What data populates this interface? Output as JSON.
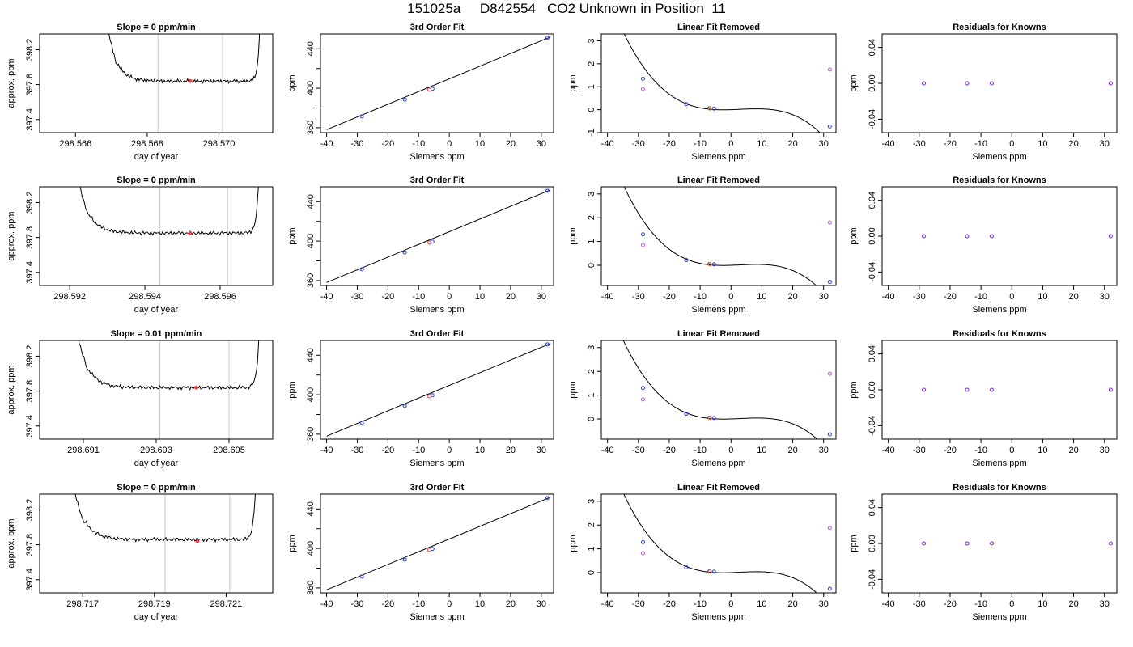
{
  "page": {
    "title": "151025a     D842554   CO2 Unknown in Position  11"
  },
  "chart_data": [
    {
      "type": "line",
      "panel": "time-trace",
      "title": "Slope =  0  ppm/min",
      "xlabel": "day of year",
      "ylabel": "approx. ppm",
      "xlim": [
        298.565,
        298.5715
      ],
      "ylim": [
        397.25,
        398.38
      ],
      "x_ticks": [
        298.566,
        298.568,
        298.57
      ],
      "x_tick_labels": [
        "298.566",
        "298.568",
        "298.570"
      ],
      "y_ticks": [
        397.4,
        397.8,
        398.2
      ],
      "y_tick_labels": [
        "397.4",
        "397.8",
        "398.2"
      ],
      "trace_start": 298.5667,
      "trace_end": 298.5712,
      "baseline": 397.84,
      "marker_lines": [
        298.5683,
        298.5701
      ],
      "marker_point": {
        "x": 298.5692,
        "y": 397.84
      }
    },
    {
      "type": "scatter",
      "panel": "fit",
      "title": "3rd Order Fit",
      "xlabel": "Siemens ppm",
      "ylabel": "ppm",
      "xlim": [
        -42,
        34
      ],
      "ylim": [
        355,
        455
      ],
      "x_ticks": [
        -40,
        -30,
        -20,
        -10,
        0,
        10,
        20,
        30
      ],
      "x_tick_labels": [
        "-40",
        "-30",
        "-20",
        "-10",
        "0",
        "10",
        "20",
        "30"
      ],
      "y_ticks": [
        360,
        380,
        400,
        420,
        440
      ],
      "y_tick_labels": [
        "360",
        "",
        "400",
        "",
        "440"
      ],
      "line": {
        "x": [
          -40,
          33
        ],
        "y": [
          358,
          452
        ]
      },
      "known_points": [
        {
          "x": -28.5,
          "y": 371.5
        },
        {
          "x": -14.5,
          "y": 388.5
        },
        {
          "x": -5.5,
          "y": 399.5
        },
        {
          "x": 32,
          "y": 451
        }
      ],
      "unknown_points": [
        {
          "x": -6.5,
          "y": 398.5
        }
      ]
    },
    {
      "type": "scatter",
      "panel": "residual-curve",
      "title": "Linear Fit Removed",
      "xlabel": "Siemens ppm",
      "ylabel": "ppm",
      "xlim": [
        -42,
        34
      ],
      "ylim": [
        -1,
        3.3
      ],
      "x_ticks": [
        -40,
        -30,
        -20,
        -10,
        0,
        10,
        20,
        30
      ],
      "x_tick_labels": [
        "-40",
        "-30",
        "-20",
        "-10",
        "0",
        "10",
        "20",
        "30"
      ],
      "y_ticks": [
        -1,
        0,
        1,
        2,
        3
      ],
      "y_tick_labels": [
        "-1",
        "0",
        "1",
        "2",
        "3"
      ],
      "curve_range": [
        -40,
        32
      ],
      "curve_a": -6.7e-05,
      "curve_b": 0.00057,
      "curve_c": 0.0044,
      "known_points": [
        {
          "x": -28.5,
          "y": 1.35
        },
        {
          "x": -14.5,
          "y": 0.24
        },
        {
          "x": -7,
          "y": 0.06
        },
        {
          "x": -5.5,
          "y": 0.05
        },
        {
          "x": 32,
          "y": -0.73
        }
      ],
      "unknown_points": [
        {
          "x": -6.8,
          "y": 0.05
        }
      ],
      "open_points": [
        {
          "x": -28.5,
          "y": 0.9
        },
        {
          "x": 32,
          "y": 1.75
        }
      ]
    },
    {
      "type": "scatter",
      "panel": "knowns-residuals",
      "title": "Residuals for Knowns",
      "xlabel": "Siemens ppm",
      "ylabel": "ppm",
      "xlim": [
        -42,
        34
      ],
      "ylim": [
        -0.055,
        0.055
      ],
      "x_ticks": [
        -40,
        -30,
        -20,
        -10,
        0,
        10,
        20,
        30
      ],
      "x_tick_labels": [
        "-40",
        "-30",
        "-20",
        "-10",
        "0",
        "10",
        "20",
        "30"
      ],
      "y_ticks": [
        -0.04,
        0,
        0.04
      ],
      "y_tick_labels": [
        "-0.04",
        "0.00",
        "0.04"
      ],
      "points": [
        {
          "x": -28.5,
          "y": 0
        },
        {
          "x": -14.5,
          "y": 0
        },
        {
          "x": -6.5,
          "y": 0
        },
        {
          "x": 32,
          "y": 0
        }
      ]
    },
    {
      "type": "line",
      "panel": "time-trace",
      "title": "Slope =  0  ppm/min",
      "xlabel": "day of year",
      "ylabel": "approx. ppm",
      "xlim": [
        298.5912,
        298.5974
      ],
      "ylim": [
        397.25,
        398.38
      ],
      "x_ticks": [
        298.592,
        298.594,
        298.596
      ],
      "x_tick_labels": [
        "298.592",
        "298.594",
        "298.596"
      ],
      "y_ticks": [
        397.4,
        397.8,
        398.2
      ],
      "y_tick_labels": [
        "397.4",
        "397.8",
        "398.2"
      ],
      "trace_start": 298.592,
      "trace_end": 298.5971,
      "baseline": 397.85,
      "marker_lines": [
        298.5944,
        298.5962
      ],
      "marker_point": {
        "x": 298.5952,
        "y": 397.85
      }
    },
    {
      "type": "scatter",
      "panel": "fit",
      "title": "3rd Order Fit",
      "xlabel": "Siemens ppm",
      "ylabel": "ppm",
      "xlim": [
        -42,
        34
      ],
      "ylim": [
        355,
        455
      ],
      "x_ticks": [
        -40,
        -30,
        -20,
        -10,
        0,
        10,
        20,
        30
      ],
      "x_tick_labels": [
        "-40",
        "-30",
        "-20",
        "-10",
        "0",
        "10",
        "20",
        "30"
      ],
      "y_ticks": [
        360,
        380,
        400,
        420,
        440
      ],
      "y_tick_labels": [
        "360",
        "",
        "400",
        "",
        "440"
      ],
      "line": {
        "x": [
          -40,
          33
        ],
        "y": [
          358,
          452
        ]
      },
      "known_points": [
        {
          "x": -28.5,
          "y": 371.5
        },
        {
          "x": -14.5,
          "y": 388.5
        },
        {
          "x": -5.5,
          "y": 399.5
        },
        {
          "x": 32,
          "y": 451
        }
      ],
      "unknown_points": [
        {
          "x": -6.5,
          "y": 398.5
        }
      ]
    },
    {
      "type": "scatter",
      "panel": "residual-curve",
      "title": "Linear Fit Removed",
      "xlabel": "Siemens ppm",
      "ylabel": "ppm",
      "xlim": [
        -42,
        34
      ],
      "ylim": [
        -0.85,
        3.3
      ],
      "x_ticks": [
        -40,
        -30,
        -20,
        -10,
        0,
        10,
        20,
        30
      ],
      "x_tick_labels": [
        "-40",
        "-30",
        "-20",
        "-10",
        "0",
        "10",
        "20",
        "30"
      ],
      "y_ticks": [
        0,
        1,
        2,
        3
      ],
      "y_tick_labels": [
        "0",
        "1",
        "2",
        "3"
      ],
      "curve_range": [
        -40,
        32
      ],
      "curve_a": -6.7e-05,
      "curve_b": 0.00057,
      "curve_c": 0.0044,
      "known_points": [
        {
          "x": -28.5,
          "y": 1.3
        },
        {
          "x": -14.5,
          "y": 0.22
        },
        {
          "x": -7,
          "y": 0.05
        },
        {
          "x": -5.5,
          "y": 0.04
        },
        {
          "x": 32,
          "y": -0.7
        }
      ],
      "unknown_points": [
        {
          "x": -6.8,
          "y": 0.04
        }
      ],
      "open_points": [
        {
          "x": -28.5,
          "y": 0.85
        },
        {
          "x": 32,
          "y": 1.8
        }
      ]
    },
    {
      "type": "scatter",
      "panel": "knowns-residuals",
      "title": "Residuals for Knowns",
      "xlabel": "Siemens ppm",
      "ylabel": "ppm",
      "xlim": [
        -42,
        34
      ],
      "ylim": [
        -0.055,
        0.055
      ],
      "x_ticks": [
        -40,
        -30,
        -20,
        -10,
        0,
        10,
        20,
        30
      ],
      "x_tick_labels": [
        "-40",
        "-30",
        "-20",
        "-10",
        "0",
        "10",
        "20",
        "30"
      ],
      "y_ticks": [
        -0.04,
        0,
        0.04
      ],
      "y_tick_labels": [
        "-0.04",
        "0.00",
        "0.04"
      ],
      "points": [
        {
          "x": -28.5,
          "y": 0
        },
        {
          "x": -14.5,
          "y": 0
        },
        {
          "x": -6.5,
          "y": 0
        },
        {
          "x": 32,
          "y": 0
        }
      ]
    },
    {
      "type": "line",
      "panel": "time-trace",
      "title": "Slope =  0.01  ppm/min",
      "xlabel": "day of year",
      "ylabel": "approx. ppm",
      "xlim": [
        298.6898,
        298.6962
      ],
      "ylim": [
        397.25,
        398.38
      ],
      "x_ticks": [
        298.691,
        298.693,
        298.695
      ],
      "x_tick_labels": [
        "298.691",
        "298.693",
        "298.695"
      ],
      "y_ticks": [
        397.4,
        397.8,
        398.2
      ],
      "y_tick_labels": [
        "397.4",
        "397.8",
        "398.2"
      ],
      "trace_start": 298.6906,
      "trace_end": 298.6959,
      "baseline": 397.84,
      "marker_lines": [
        298.6931,
        298.695
      ],
      "marker_point": {
        "x": 298.6941,
        "y": 397.84
      }
    },
    {
      "type": "scatter",
      "panel": "fit",
      "title": "3rd Order Fit",
      "xlabel": "Siemens ppm",
      "ylabel": "ppm",
      "xlim": [
        -42,
        34
      ],
      "ylim": [
        355,
        455
      ],
      "x_ticks": [
        -40,
        -30,
        -20,
        -10,
        0,
        10,
        20,
        30
      ],
      "x_tick_labels": [
        "-40",
        "-30",
        "-20",
        "-10",
        "0",
        "10",
        "20",
        "30"
      ],
      "y_ticks": [
        360,
        380,
        400,
        420,
        440
      ],
      "y_tick_labels": [
        "360",
        "",
        "400",
        "",
        "440"
      ],
      "line": {
        "x": [
          -40,
          33
        ],
        "y": [
          358,
          452
        ]
      },
      "known_points": [
        {
          "x": -28.5,
          "y": 371.5
        },
        {
          "x": -14.5,
          "y": 388.5
        },
        {
          "x": -5.5,
          "y": 399.5
        },
        {
          "x": 32,
          "y": 451
        }
      ],
      "unknown_points": [
        {
          "x": -6.5,
          "y": 398.5
        }
      ]
    },
    {
      "type": "scatter",
      "panel": "residual-curve",
      "title": "Linear Fit Removed",
      "xlabel": "Siemens ppm",
      "ylabel": "ppm",
      "xlim": [
        -42,
        34
      ],
      "ylim": [
        -0.85,
        3.3
      ],
      "x_ticks": [
        -40,
        -30,
        -20,
        -10,
        0,
        10,
        20,
        30
      ],
      "x_tick_labels": [
        "-40",
        "-30",
        "-20",
        "-10",
        "0",
        "10",
        "20",
        "30"
      ],
      "y_ticks": [
        0,
        1,
        2,
        3
      ],
      "y_tick_labels": [
        "0",
        "1",
        "2",
        "3"
      ],
      "curve_range": [
        -40,
        32
      ],
      "curve_a": -6.5e-05,
      "curve_b": 0.00057,
      "curve_c": 0.0043,
      "known_points": [
        {
          "x": -28.5,
          "y": 1.3
        },
        {
          "x": -14.5,
          "y": 0.22
        },
        {
          "x": -7,
          "y": 0.05
        },
        {
          "x": -5.5,
          "y": 0.04
        },
        {
          "x": 32,
          "y": -0.65
        }
      ],
      "unknown_points": [
        {
          "x": -6.8,
          "y": 0.04
        }
      ],
      "open_points": [
        {
          "x": -28.5,
          "y": 0.82
        },
        {
          "x": 32,
          "y": 1.9
        }
      ]
    },
    {
      "type": "scatter",
      "panel": "knowns-residuals",
      "title": "Residuals for Knowns",
      "xlabel": "Siemens ppm",
      "ylabel": "ppm",
      "xlim": [
        -42,
        34
      ],
      "ylim": [
        -0.055,
        0.055
      ],
      "x_ticks": [
        -40,
        -30,
        -20,
        -10,
        0,
        10,
        20,
        30
      ],
      "x_tick_labels": [
        "-40",
        "-30",
        "-20",
        "-10",
        "0",
        "10",
        "20",
        "30"
      ],
      "y_ticks": [
        -0.04,
        0,
        0.04
      ],
      "y_tick_labels": [
        "-0.04",
        "0.00",
        "0.04"
      ],
      "points": [
        {
          "x": -28.5,
          "y": 0
        },
        {
          "x": -14.5,
          "y": 0
        },
        {
          "x": -6.5,
          "y": 0
        },
        {
          "x": 32,
          "y": 0
        }
      ]
    },
    {
      "type": "line",
      "panel": "time-trace",
      "title": "Slope =  0  ppm/min",
      "xlabel": "day of year",
      "ylabel": "approx. ppm",
      "xlim": [
        298.7158,
        298.7223
      ],
      "ylim": [
        397.25,
        398.38
      ],
      "x_ticks": [
        298.717,
        298.719,
        298.721
      ],
      "x_tick_labels": [
        "298.717",
        "298.719",
        "298.721"
      ],
      "y_ticks": [
        397.4,
        397.8,
        398.2
      ],
      "y_tick_labels": [
        "397.4",
        "397.8",
        "398.2"
      ],
      "trace_start": 298.7165,
      "trace_end": 298.7219,
      "baseline": 397.86,
      "marker_lines": [
        298.7193,
        298.7211
      ],
      "marker_point": {
        "x": 298.7202,
        "y": 397.84
      }
    },
    {
      "type": "scatter",
      "panel": "fit",
      "title": "3rd Order Fit",
      "xlabel": "Siemens ppm",
      "ylabel": "ppm",
      "xlim": [
        -42,
        34
      ],
      "ylim": [
        355,
        455
      ],
      "x_ticks": [
        -40,
        -30,
        -20,
        -10,
        0,
        10,
        20,
        30
      ],
      "x_tick_labels": [
        "-40",
        "-30",
        "-20",
        "-10",
        "0",
        "10",
        "20",
        "30"
      ],
      "y_ticks": [
        360,
        380,
        400,
        420,
        440
      ],
      "y_tick_labels": [
        "360",
        "",
        "400",
        "",
        "440"
      ],
      "line": {
        "x": [
          -40,
          33
        ],
        "y": [
          358,
          452
        ]
      },
      "known_points": [
        {
          "x": -28.5,
          "y": 371.5
        },
        {
          "x": -14.5,
          "y": 388.5
        },
        {
          "x": -5.5,
          "y": 399.5
        },
        {
          "x": 32,
          "y": 451
        }
      ],
      "unknown_points": [
        {
          "x": -6.5,
          "y": 398.5
        }
      ]
    },
    {
      "type": "scatter",
      "panel": "residual-curve",
      "title": "Linear Fit Removed",
      "xlabel": "Siemens ppm",
      "ylabel": "ppm",
      "xlim": [
        -42,
        34
      ],
      "ylim": [
        -0.85,
        3.3
      ],
      "x_ticks": [
        -40,
        -30,
        -20,
        -10,
        0,
        10,
        20,
        30
      ],
      "x_tick_labels": [
        "-40",
        "-30",
        "-20",
        "-10",
        "0",
        "10",
        "20",
        "30"
      ],
      "y_ticks": [
        0,
        1,
        2,
        3
      ],
      "y_tick_labels": [
        "0",
        "1",
        "2",
        "3"
      ],
      "curve_range": [
        -40,
        32
      ],
      "curve_a": -6.6e-05,
      "curve_b": 0.00057,
      "curve_c": 0.0043,
      "known_points": [
        {
          "x": -28.5,
          "y": 1.28
        },
        {
          "x": -14.5,
          "y": 0.22
        },
        {
          "x": -7,
          "y": 0.05
        },
        {
          "x": -5.5,
          "y": 0.04
        },
        {
          "x": 32,
          "y": -0.68
        }
      ],
      "unknown_points": [
        {
          "x": -6.8,
          "y": 0.04
        }
      ],
      "open_points": [
        {
          "x": -28.5,
          "y": 0.82
        },
        {
          "x": 32,
          "y": 1.88
        }
      ]
    },
    {
      "type": "scatter",
      "panel": "knowns-residuals",
      "title": "Residuals for Knowns",
      "xlabel": "Siemens ppm",
      "ylabel": "ppm",
      "xlim": [
        -42,
        34
      ],
      "ylim": [
        -0.055,
        0.055
      ],
      "x_ticks": [
        -40,
        -30,
        -20,
        -10,
        0,
        10,
        20,
        30
      ],
      "x_tick_labels": [
        "-40",
        "-30",
        "-20",
        "-10",
        "0",
        "10",
        "20",
        "30"
      ],
      "y_ticks": [
        -0.04,
        0,
        0.04
      ],
      "y_tick_labels": [
        "-0.04",
        "0.00",
        "0.04"
      ],
      "points": [
        {
          "x": -28.5,
          "y": 0
        },
        {
          "x": -14.5,
          "y": 0
        },
        {
          "x": -6.5,
          "y": 0
        },
        {
          "x": 32,
          "y": 0
        }
      ]
    }
  ]
}
